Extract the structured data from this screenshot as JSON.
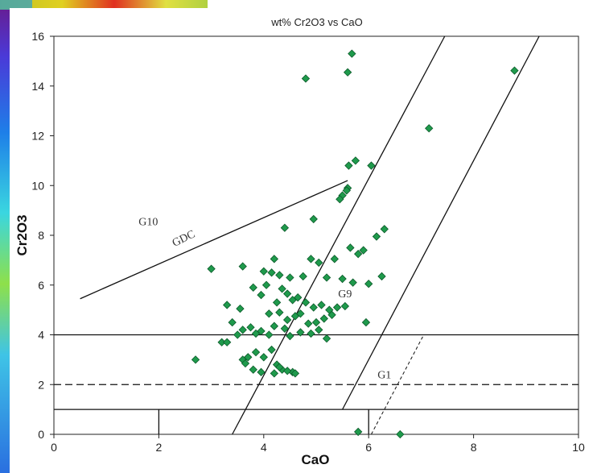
{
  "colors": {
    "point_fill": "#1f9a4c",
    "point_stroke": "#0c5a2a",
    "line": "#111111",
    "plot_bg": "#ffffff"
  },
  "chart_data": {
    "type": "scatter",
    "title": "wt% Cr2O3 vs CaO",
    "xlabel": "CaO",
    "ylabel": "Cr2O3",
    "xlim": [
      0,
      10
    ],
    "ylim": [
      0,
      16
    ],
    "xticks": [
      0,
      2,
      4,
      6,
      8,
      10
    ],
    "yticks": [
      0,
      2,
      4,
      6,
      8,
      10,
      12,
      14,
      16
    ],
    "grid": false,
    "marker": "diamond",
    "region_labels": [
      {
        "text": "G10",
        "x": 1.8,
        "y": 8.4
      },
      {
        "text": "GDC",
        "x": 2.5,
        "y": 7.75
      },
      {
        "text": "G9",
        "x": 5.55,
        "y": 5.5
      },
      {
        "text": "G1",
        "x": 6.3,
        "y": 2.25
      }
    ],
    "lines": [
      {
        "name": "G10-GDC",
        "style": "solid",
        "points": [
          [
            0.5,
            5.45
          ],
          [
            5.6,
            10.2
          ]
        ]
      },
      {
        "name": "G9-left",
        "style": "solid",
        "points": [
          [
            3.4,
            0.0
          ],
          [
            7.45,
            16.0
          ]
        ]
      },
      {
        "name": "G9-right",
        "style": "solid",
        "points": [
          [
            5.5,
            1.0
          ],
          [
            9.25,
            16.0
          ]
        ]
      },
      {
        "name": "y-4",
        "style": "solid",
        "points": [
          [
            0,
            4.0
          ],
          [
            10,
            4.0
          ]
        ]
      },
      {
        "name": "y-1",
        "style": "solid",
        "points": [
          [
            0,
            1.0
          ],
          [
            10,
            1.0
          ]
        ]
      },
      {
        "name": "y-2",
        "style": "dashed",
        "points": [
          [
            0,
            2.0
          ],
          [
            10,
            2.0
          ]
        ]
      },
      {
        "name": "x-2-tick",
        "style": "solid",
        "points": [
          [
            2.0,
            0.0
          ],
          [
            2.0,
            1.0
          ]
        ]
      },
      {
        "name": "x-6-tick",
        "style": "solid",
        "points": [
          [
            6.0,
            0.0
          ],
          [
            6.0,
            1.0
          ]
        ]
      },
      {
        "name": "G1-diag",
        "style": "dashed",
        "points": [
          [
            6.05,
            0.0
          ],
          [
            7.05,
            4.0
          ]
        ]
      }
    ],
    "series": [
      {
        "x": [
          5.68,
          5.6,
          4.8,
          5.62,
          8.78,
          7.15,
          5.75,
          6.05,
          5.6,
          5.58,
          5.5,
          5.45,
          4.95,
          4.4,
          6.3,
          6.15,
          3.6,
          3.0,
          4.2,
          4.0,
          4.3,
          4.5,
          4.75,
          4.9,
          5.05,
          5.2,
          5.35,
          5.5,
          5.65,
          5.8,
          5.9,
          6.25,
          6.0,
          3.3,
          3.55,
          3.8,
          3.95,
          4.05,
          4.15,
          4.25,
          4.35,
          4.45,
          4.55,
          4.65,
          4.8,
          4.95,
          5.1,
          5.25,
          5.4,
          5.55,
          5.7,
          4.1,
          4.3,
          4.45,
          4.6,
          4.7,
          4.85,
          5.0,
          5.15,
          5.3,
          5.95,
          3.4,
          3.6,
          3.75,
          3.85,
          3.95,
          4.1,
          4.2,
          4.4,
          4.5,
          4.7,
          4.9,
          5.05,
          5.2,
          3.2,
          3.3,
          3.5,
          3.6,
          3.7,
          3.85,
          4.0,
          4.15,
          4.25,
          4.35,
          4.55,
          2.7,
          3.65,
          3.8,
          3.95,
          4.2,
          4.3,
          4.45,
          4.6,
          5.8,
          6.6
        ],
        "y": [
          15.3,
          14.55,
          14.3,
          10.8,
          14.62,
          12.3,
          11.0,
          10.8,
          9.9,
          9.8,
          9.6,
          9.45,
          8.65,
          8.3,
          8.25,
          7.95,
          6.75,
          6.65,
          7.05,
          6.55,
          6.4,
          6.3,
          6.35,
          7.05,
          6.9,
          6.3,
          7.05,
          6.25,
          7.5,
          7.25,
          7.4,
          6.35,
          6.05,
          5.2,
          5.05,
          5.9,
          5.6,
          6.0,
          6.5,
          5.3,
          5.85,
          5.65,
          5.4,
          5.5,
          5.3,
          5.1,
          5.2,
          5.0,
          5.1,
          5.15,
          6.1,
          4.85,
          4.9,
          4.6,
          4.75,
          4.85,
          4.45,
          4.5,
          4.65,
          4.8,
          4.5,
          4.5,
          4.2,
          4.3,
          4.05,
          4.15,
          4.0,
          4.35,
          4.25,
          3.95,
          4.1,
          4.05,
          4.2,
          3.85,
          3.7,
          3.7,
          4.0,
          3.0,
          3.1,
          3.3,
          3.1,
          3.4,
          2.8,
          2.6,
          2.5,
          3.0,
          2.85,
          2.6,
          2.5,
          2.45,
          2.7,
          2.55,
          2.45,
          0.1,
          0.0
        ]
      }
    ]
  }
}
